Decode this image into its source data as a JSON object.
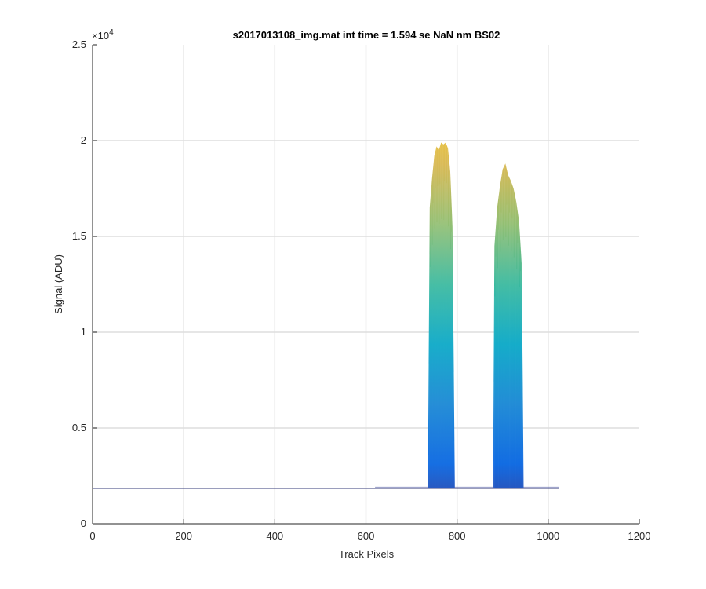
{
  "chart_data": {
    "type": "area",
    "title": "s2017013108_img.mat int time = 1.594 se  NaN nm BS02",
    "xlabel": "Track Pixels",
    "ylabel": "Signal (ADU)",
    "y_exponent_label": "×10",
    "y_exponent_power": "4",
    "xlim": [
      0,
      1200
    ],
    "ylim": [
      0,
      25000
    ],
    "x_ticks": [
      0,
      200,
      400,
      600,
      800,
      1000,
      1200
    ],
    "x_tick_labels": [
      "0",
      "200",
      "400",
      "600",
      "800",
      "1000",
      "1200"
    ],
    "y_ticks": [
      0,
      5000,
      10000,
      15000,
      20000,
      25000
    ],
    "y_tick_labels": [
      "0",
      "0.5",
      "1",
      "1.5",
      "2",
      "2.5"
    ],
    "grid": true,
    "baseline": 1850,
    "x_data_max": 1024,
    "colormap": "parula",
    "colormap_stops": [
      "#352a87",
      "#0363e1",
      "#1485d4",
      "#06a7c6",
      "#38b99e",
      "#92bf73",
      "#d9ba56",
      "#fcce2e",
      "#f9fb0e"
    ],
    "peaks": [
      {
        "name": "",
        "x": [
          736,
          740,
          745,
          750,
          755,
          760,
          765,
          770,
          775,
          780,
          785,
          790,
          795
        ],
        "max_signal": [
          2100,
          16500,
          18000,
          19200,
          19700,
          19500,
          19900,
          19800,
          19900,
          19600,
          18400,
          15500,
          2100
        ]
      },
      {
        "name": "",
        "x": [
          879,
          882,
          888,
          894,
          900,
          906,
          912,
          918,
          924,
          930,
          936,
          942,
          946
        ],
        "max_signal": [
          2000,
          14500,
          16500,
          17600,
          18500,
          18800,
          18200,
          17900,
          17500,
          16800,
          15800,
          13500,
          2000
        ]
      }
    ]
  }
}
